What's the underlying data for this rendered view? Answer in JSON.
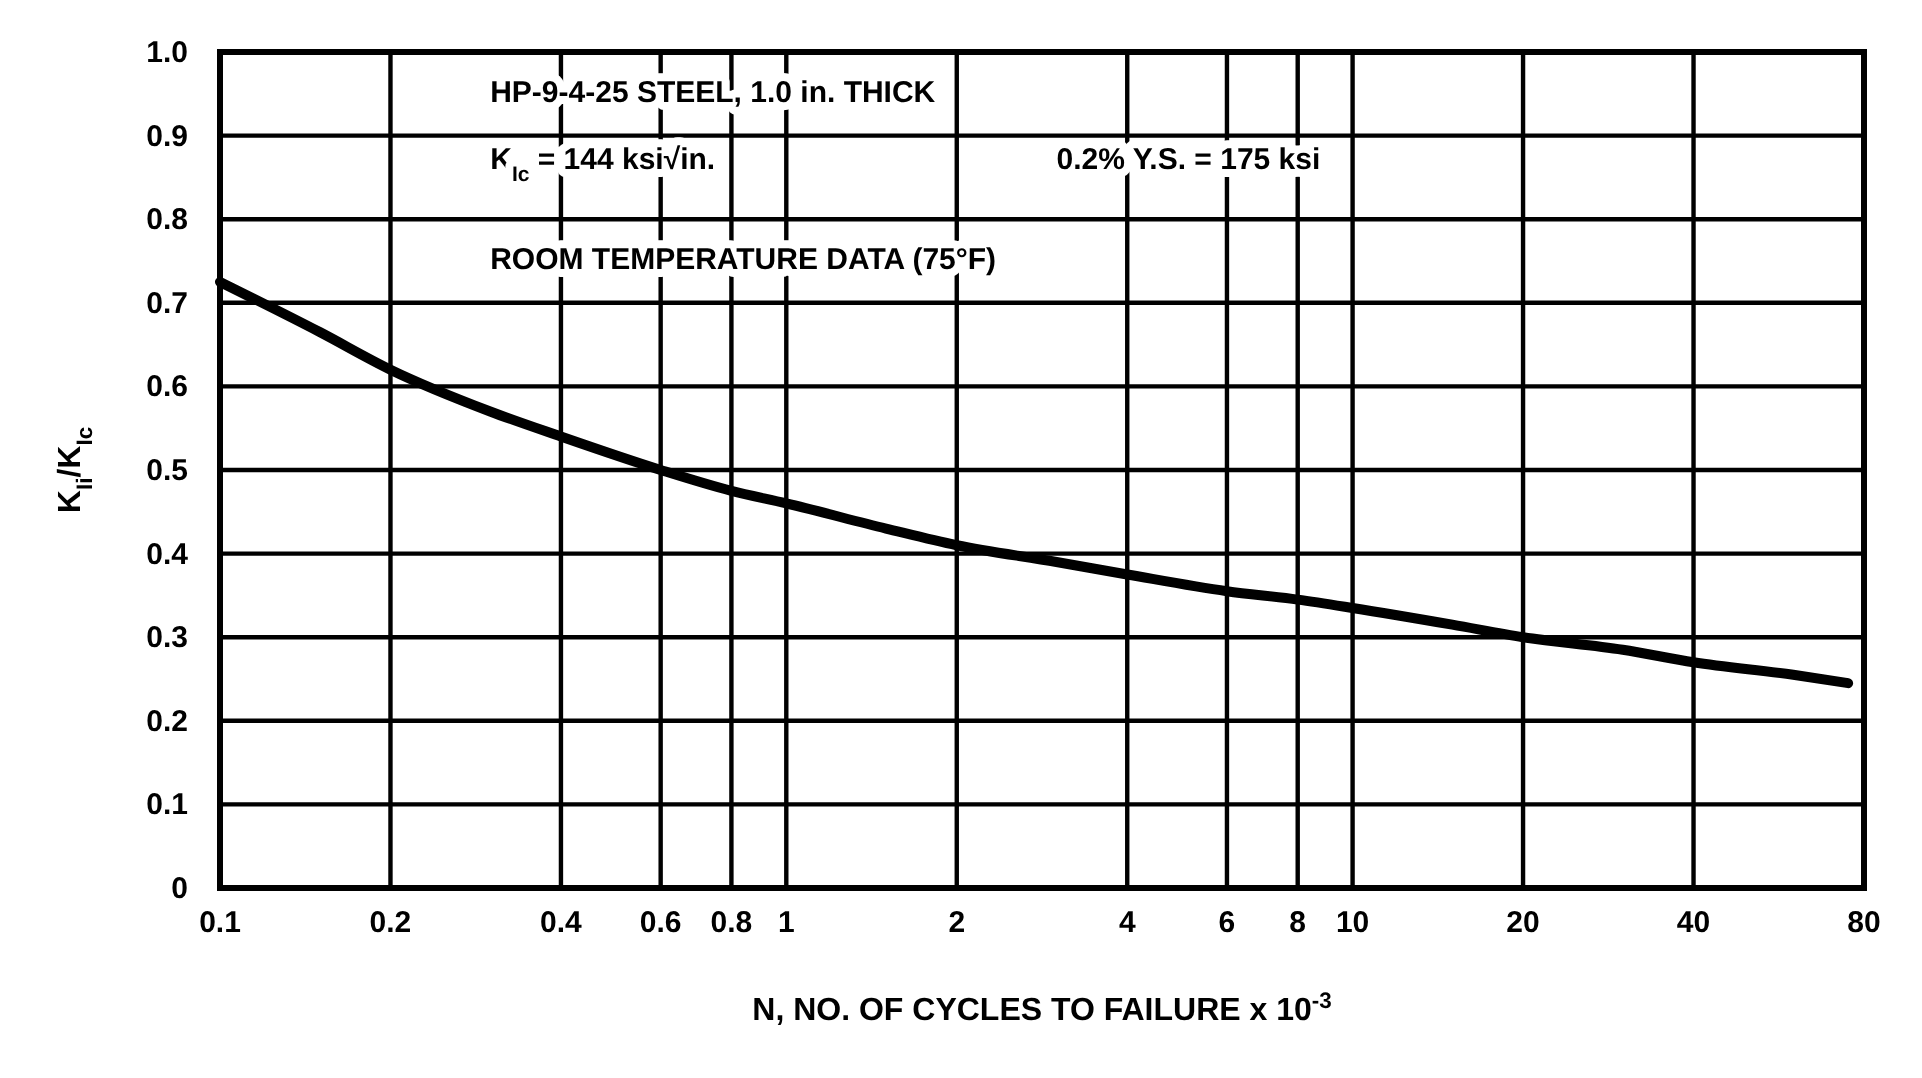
{
  "chart_data": {
    "type": "line",
    "xlabel": "N, NO. OF CYCLES TO FAILURE x 10$^{-3}$",
    "ylabel": "K$_{Ii}$/K$_{Ic}$",
    "log": "x",
    "grid": true,
    "line_style": "solid",
    "marker": "none",
    "xlim": [
      0.1,
      80
    ],
    "xticks": [
      0.1,
      0.2,
      0.4,
      0.6,
      0.8,
      1,
      2,
      4,
      6,
      8,
      10,
      20,
      40,
      80
    ],
    "ylim": [
      0,
      1
    ],
    "yticks": [
      0,
      0.1,
      0.2,
      0.3,
      0.4,
      0.5,
      0.6,
      0.7,
      0.8,
      0.9,
      {
        "value": 1,
        "label": "1.0"
      }
    ],
    "x": [
      0.1,
      0.15,
      0.2,
      0.3,
      0.4,
      0.6,
      0.8,
      1,
      1.5,
      2,
      3,
      4,
      6,
      8,
      10,
      15,
      20,
      30,
      40,
      60,
      75
    ],
    "series": [
      {
        "color": "#000000",
        "values": [
          0.725,
          0.665,
          0.62,
          0.57,
          0.54,
          0.5,
          0.475,
          0.46,
          0.43,
          0.41,
          0.39,
          0.375,
          0.355,
          0.345,
          0.335,
          0.315,
          0.3,
          0.285,
          0.27,
          0.255,
          0.245
        ]
      }
    ],
    "annotations": [
      "HP-9-4-25 STEEL, 1.0 in. THICK",
      "K$_{Ic}$ = 144 ksi√in.",
      "0.2% Y.S. = 175 ksi",
      "ROOM TEMPERATURE DATA (75°F)"
    ]
  }
}
